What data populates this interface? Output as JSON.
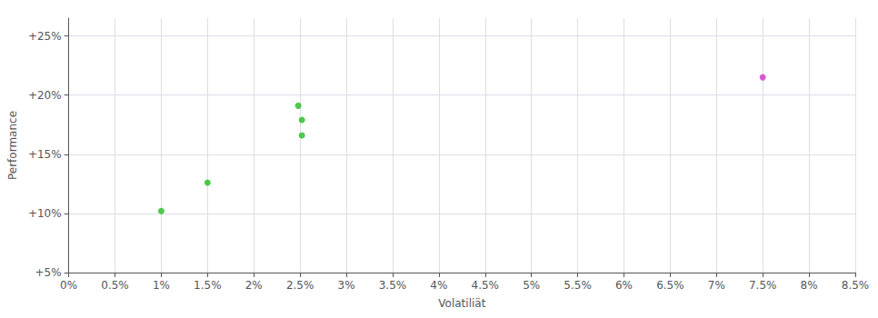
{
  "chart_data": {
    "type": "scatter",
    "xlabel": "Volatiliät",
    "ylabel": "Performance",
    "xlim": [
      0.0,
      0.085
    ],
    "ylim": [
      0.05,
      0.265
    ],
    "xticks": [
      {
        "value": 0.0,
        "label": "0%"
      },
      {
        "value": 0.005,
        "label": "0.5%"
      },
      {
        "value": 0.01,
        "label": "1%"
      },
      {
        "value": 0.015,
        "label": "1.5%"
      },
      {
        "value": 0.02,
        "label": "2%"
      },
      {
        "value": 0.025,
        "label": "2.5%"
      },
      {
        "value": 0.03,
        "label": "3%"
      },
      {
        "value": 0.035,
        "label": "3.5%"
      },
      {
        "value": 0.04,
        "label": "4%"
      },
      {
        "value": 0.045,
        "label": "4.5%"
      },
      {
        "value": 0.05,
        "label": "5%"
      },
      {
        "value": 0.055,
        "label": "5.5%"
      },
      {
        "value": 0.06,
        "label": "6%"
      },
      {
        "value": 0.065,
        "label": "6.5%"
      },
      {
        "value": 0.07,
        "label": "7%"
      },
      {
        "value": 0.075,
        "label": "7.5%"
      },
      {
        "value": 0.08,
        "label": "8%"
      },
      {
        "value": 0.085,
        "label": "8.5%"
      }
    ],
    "yticks": [
      {
        "value": 0.05,
        "label": "+5%"
      },
      {
        "value": 0.1,
        "label": "+10%"
      },
      {
        "value": 0.15,
        "label": "+15%"
      },
      {
        "value": 0.2,
        "label": "+20%"
      },
      {
        "value": 0.25,
        "label": "+25%"
      }
    ],
    "grid": true,
    "series": [
      {
        "color": "#22bb22",
        "x": [
          0.01,
          0.015,
          0.0248,
          0.0252,
          0.0252
        ],
        "values": [
          0.102,
          0.126,
          0.191,
          0.179,
          0.166
        ]
      },
      {
        "color": "#cc33cc",
        "x": [
          0.075
        ],
        "values": [
          0.215
        ]
      }
    ]
  }
}
